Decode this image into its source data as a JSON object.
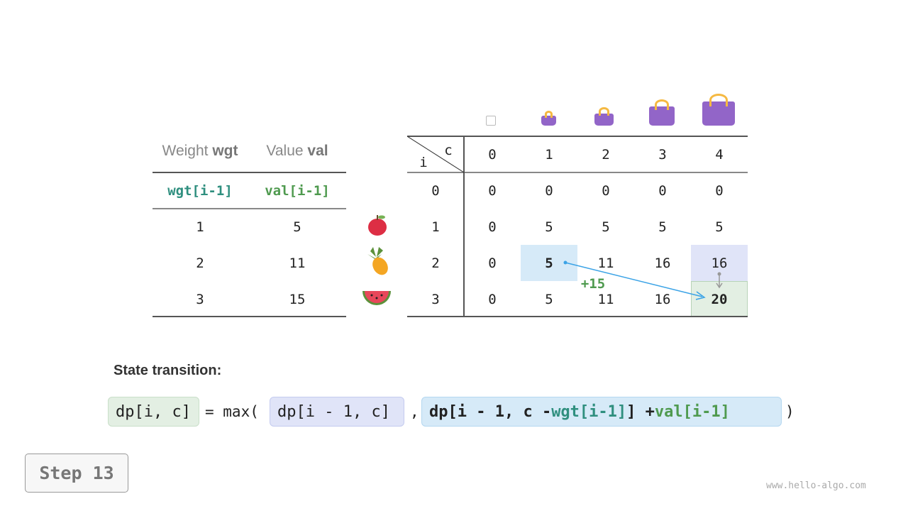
{
  "items_table": {
    "headers": [
      {
        "label": "Weight",
        "code": "wgt"
      },
      {
        "label": "Value",
        "code": "val"
      }
    ],
    "subheaders": [
      "wgt[i-1]",
      "val[i-1]"
    ],
    "rows": [
      {
        "wgt": "1",
        "val": "5",
        "item": "apple-icon"
      },
      {
        "wgt": "2",
        "val": "11",
        "item": "pineapple-icon"
      },
      {
        "wgt": "3",
        "val": "15",
        "item": "watermelon-icon"
      }
    ]
  },
  "dp_table": {
    "corner_row_label": "i",
    "corner_col_label": "c",
    "col_headers": [
      "0",
      "1",
      "2",
      "3",
      "4"
    ],
    "row_headers": [
      "0",
      "1",
      "2",
      "3"
    ],
    "cells": [
      [
        "0",
        "0",
        "0",
        "0",
        "0"
      ],
      [
        "0",
        "5",
        "5",
        "5",
        "5"
      ],
      [
        "0",
        "5",
        "11",
        "16",
        "16"
      ],
      [
        "0",
        "5",
        "11",
        "16",
        "20"
      ]
    ],
    "annotation": "+15",
    "highlight_colors": {
      "source_add": "#d6eaf8",
      "source_skip": "#e0e4f8",
      "target": "#e3efe3",
      "arrow": "#3ba3e6",
      "annotation": "#4f9a4f"
    }
  },
  "formula": {
    "title": "State transition:",
    "lhs": "dp[i, c]",
    "eq": "= max(",
    "arg1": "dp[i - 1, c]",
    "comma": ",",
    "arg2_a": "dp[i - 1, c - ",
    "arg2_wgt": "wgt[i-1]",
    "arg2_b": "] + ",
    "arg2_val": "val[i-1]",
    "close": ")"
  },
  "step_label": "Step 13",
  "watermark": "www.hello-algo.com"
}
